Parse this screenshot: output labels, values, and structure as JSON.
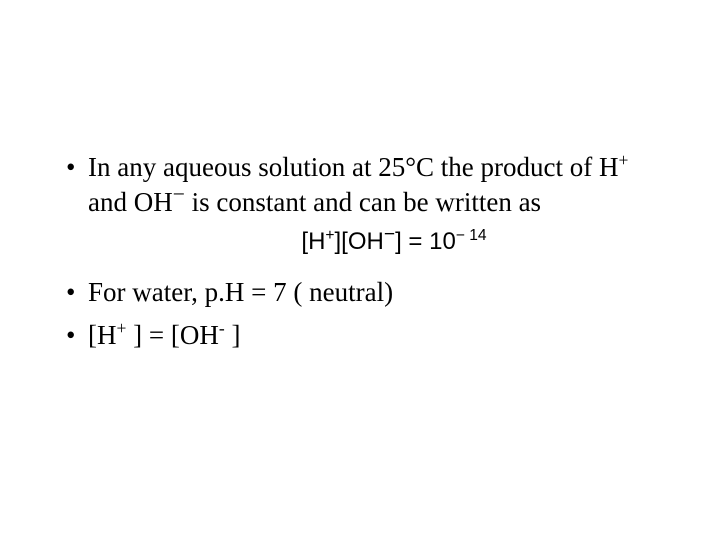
{
  "colors": {
    "background": "#ffffff",
    "text": "#000000"
  },
  "typography": {
    "body_font": "Times New Roman",
    "equation_font": "Arial",
    "body_fontsize_pt": 20,
    "equation_fontsize_pt": 18
  },
  "bullets": {
    "b1": {
      "p1": "In any aqueous solution at 25°C the product of H",
      "p1_sup": "+",
      "p2": " and OH",
      "p2_sup": "−",
      "p3": " is constant and can be written as"
    },
    "eq": {
      "e1": "[H",
      "e1_sup": "+",
      "e2": "][OH",
      "e2_sup": "−",
      "e3": "] = 10",
      "e3_sup": "− 14"
    },
    "b2": "For water, p.H = 7 ( neutral)",
    "b3": {
      "p1": "[H",
      "p1_sup": "+",
      "p2": " ] = [OH",
      "p2_sup": "-",
      "p3": " ]"
    }
  }
}
